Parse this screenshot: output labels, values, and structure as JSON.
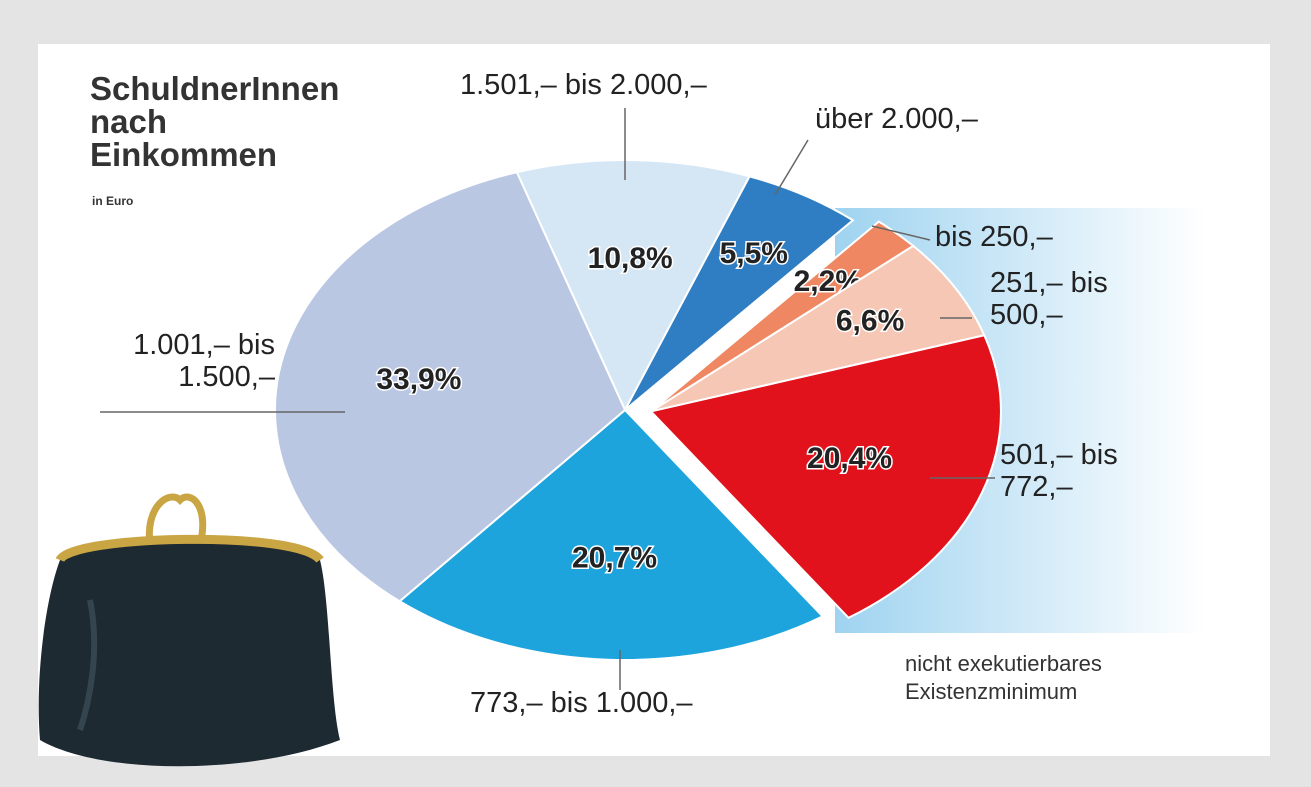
{
  "chart_data": {
    "type": "pie",
    "title": "SchuldnerInnen nach Einkommen",
    "subtitle": "in Euro",
    "annotation": "nicht exekutierbares Existenzminimum",
    "categories": [
      "1.501,– bis 2.000,–",
      "über 2.000,–",
      "bis 250,–",
      "251,– bis 500,–",
      "501,– bis 772,–",
      "773,– bis 1.000,–",
      "1.001,– bis 1.500,–"
    ],
    "values": [
      10.8,
      5.5,
      2.2,
      6.6,
      20.4,
      20.7,
      33.9
    ],
    "value_labels": [
      "10,8%",
      "5,5%",
      "2,2%",
      "6,6%",
      "20,4%",
      "20,7%",
      "33,9%"
    ],
    "colors": [
      "#d5e6f5",
      "#2f7dc2",
      "#ee8762",
      "#f6c7b5",
      "#e2121c",
      "#1ea4dd",
      "#b9c7e3"
    ],
    "exploded": [
      false,
      false,
      true,
      true,
      true,
      false,
      false
    ]
  }
}
